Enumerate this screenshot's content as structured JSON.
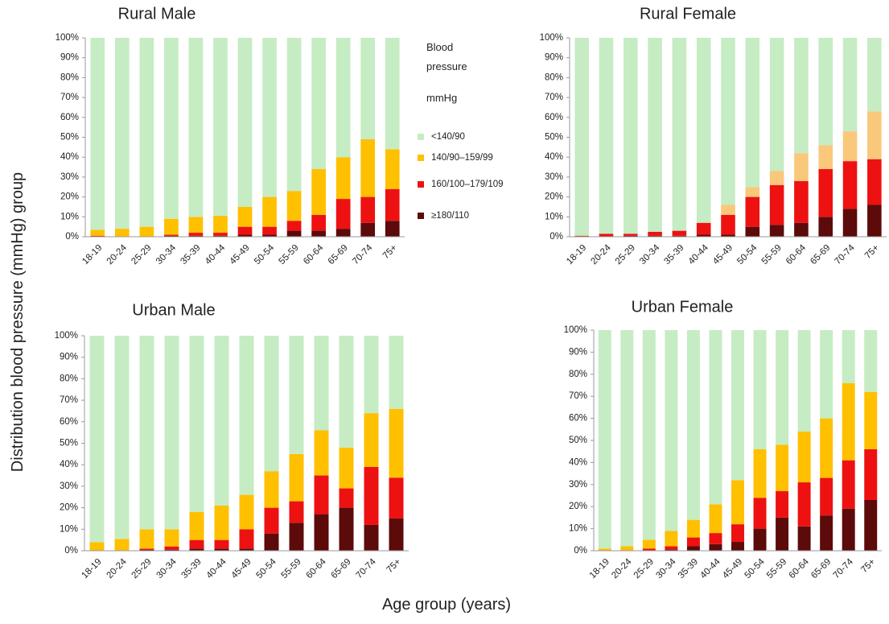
{
  "xlabel": "Age group (years)",
  "ylabel": "Distribution blood pressure (mmHg) group",
  "legend_title": "Blood pressure",
  "legend_unit": "mmHg",
  "chart_data": [
    {
      "type": "bar",
      "stacked": true,
      "title": "Rural Male",
      "categories": [
        "18-19",
        "20-24",
        "25-29",
        "30-34",
        "35-39",
        "40-44",
        "45-49",
        "50-54",
        "55-59",
        "60-64",
        "65-69",
        "70-74",
        "75+"
      ],
      "ylim": [
        0,
        100
      ],
      "yticks": [
        {
          "value": 0,
          "label": "0%"
        },
        {
          "value": 10,
          "label": "10%"
        },
        {
          "value": 20,
          "label": "20%"
        },
        {
          "value": 30,
          "label": "30%"
        },
        {
          "value": 40,
          "label": "40%"
        },
        {
          "value": 50,
          "label": "50%"
        },
        {
          "value": 60,
          "label": "60%"
        },
        {
          "value": 70,
          "label": "70%"
        },
        {
          "value": 80,
          "label": "80%"
        },
        {
          "value": 90,
          "label": "90%"
        },
        {
          "value": 100,
          "label": "100%"
        }
      ],
      "series": [
        {
          "name": "≥180/110",
          "color": "#5c0a0a",
          "values": [
            0,
            0,
            0,
            0.5,
            0.5,
            0.5,
            1,
            1,
            3,
            3,
            4,
            7,
            8
          ]
        },
        {
          "name": "160/100–179/109",
          "color": "#ee1111",
          "values": [
            0.5,
            0,
            0,
            0.5,
            1.5,
            1.5,
            4,
            4,
            5,
            8,
            15,
            13,
            16
          ]
        },
        {
          "name": "140/90–159/99",
          "color": "#ffc000",
          "values": [
            3,
            4,
            5,
            8,
            8,
            8.5,
            10,
            15,
            15,
            23,
            21,
            29,
            20
          ]
        },
        {
          "name": "<140/90",
          "color": "#c6ecc3",
          "values": [
            96.5,
            96,
            95,
            91,
            90,
            89.5,
            85,
            80,
            77,
            66,
            60,
            51,
            56
          ]
        }
      ]
    },
    {
      "type": "bar",
      "stacked": true,
      "title": "Rural Female",
      "categories": [
        "18-19",
        "20-24",
        "25-29",
        "30-34",
        "35-39",
        "40-44",
        "45-49",
        "50-54",
        "55-59",
        "60-64",
        "65-69",
        "70-74",
        "75+"
      ],
      "ylim": [
        0,
        100
      ],
      "yticks": [
        {
          "value": 0,
          "label": "0%"
        },
        {
          "value": 10,
          "label": "10%"
        },
        {
          "value": 20,
          "label": "20%"
        },
        {
          "value": 30,
          "label": "30%"
        },
        {
          "value": 40,
          "label": "40%"
        },
        {
          "value": 50,
          "label": "50%"
        },
        {
          "value": 60,
          "label": "60%"
        },
        {
          "value": 70,
          "label": "70%"
        },
        {
          "value": 80,
          "label": "80%"
        },
        {
          "value": 90,
          "label": "90%"
        },
        {
          "value": 100,
          "label": "100%"
        }
      ],
      "series": [
        {
          "name": "≥180/110",
          "color": "#5c0a0a",
          "values": [
            0,
            0,
            0.5,
            0.5,
            0.5,
            1,
            1,
            5,
            6,
            7,
            10,
            14,
            16
          ]
        },
        {
          "name": "160/100–179/109",
          "color": "#ee1111",
          "values": [
            0.5,
            1.5,
            1,
            2,
            2.5,
            6,
            10,
            15,
            20,
            21,
            24,
            24,
            23
          ]
        },
        {
          "name": "140/90–159/99",
          "color": "#f9c87a",
          "values": [
            0,
            0,
            0,
            0,
            0,
            0,
            5,
            5,
            7,
            14,
            12,
            15,
            24
          ]
        },
        {
          "name": "<140/90",
          "color": "#c6ecc3",
          "values": [
            99.5,
            98.5,
            98.5,
            97.5,
            97,
            93,
            84,
            75,
            67,
            58,
            54,
            47,
            37
          ]
        }
      ]
    },
    {
      "type": "bar",
      "stacked": true,
      "title": "Urban Male",
      "categories": [
        "18-19",
        "20-24",
        "25-29",
        "30-34",
        "35-39",
        "40-44",
        "45-49",
        "50-54",
        "55-59",
        "60-64",
        "65-69",
        "70-74",
        "75+"
      ],
      "ylim": [
        0,
        100
      ],
      "yticks": [
        {
          "value": 0,
          "label": "0%"
        },
        {
          "value": 10,
          "label": "10%"
        },
        {
          "value": 20,
          "label": "20%"
        },
        {
          "value": 30,
          "label": "30%"
        },
        {
          "value": 40,
          "label": "40%"
        },
        {
          "value": 50,
          "label": "50%"
        },
        {
          "value": 60,
          "label": "60%"
        },
        {
          "value": 70,
          "label": "70%"
        },
        {
          "value": 80,
          "label": "80%"
        },
        {
          "value": 90,
          "label": "90%"
        },
        {
          "value": 100,
          "label": "100%"
        }
      ],
      "series": [
        {
          "name": "≥180/110",
          "color": "#5c0a0a",
          "values": [
            0,
            0,
            0.5,
            0.5,
            1,
            1,
            1,
            8,
            13,
            17,
            20,
            12,
            15
          ]
        },
        {
          "name": "160/100–179/109",
          "color": "#ee1111",
          "values": [
            0,
            0,
            0.5,
            1.5,
            4,
            4,
            9,
            12,
            10,
            18,
            9,
            27,
            19
          ]
        },
        {
          "name": "140/90–159/99",
          "color": "#ffc000",
          "values": [
            4,
            5.5,
            9,
            8,
            13,
            16,
            16,
            17,
            22,
            21,
            19,
            25,
            32
          ]
        },
        {
          "name": "<140/90",
          "color": "#c6ecc3",
          "values": [
            96,
            94.5,
            90,
            90,
            82,
            79,
            74,
            63,
            55,
            44,
            52,
            36,
            34
          ]
        }
      ]
    },
    {
      "type": "bar",
      "stacked": true,
      "title": "Urban Female",
      "categories": [
        "18-19",
        "20-24",
        "25-29",
        "30-34",
        "35-39",
        "40-44",
        "45-49",
        "50-54",
        "55-59",
        "60-64",
        "65-69",
        "70-74",
        "75+"
      ],
      "ylim": [
        0,
        100
      ],
      "yticks": [
        {
          "value": 0,
          "label": "0%"
        },
        {
          "value": 10,
          "label": "10%"
        },
        {
          "value": 20,
          "label": "20%"
        },
        {
          "value": 30,
          "label": "30%"
        },
        {
          "value": 40,
          "label": "40%"
        },
        {
          "value": 50,
          "label": "50%"
        },
        {
          "value": 60,
          "label": "60%"
        },
        {
          "value": 70,
          "label": "70%"
        },
        {
          "value": 80,
          "label": "80%"
        },
        {
          "value": 90,
          "label": "90%"
        },
        {
          "value": 100,
          "label": "100%"
        }
      ],
      "series": [
        {
          "name": "≥180/110",
          "color": "#5c0a0a",
          "values": [
            0,
            0,
            0,
            0.5,
            2,
            3,
            4,
            10,
            15,
            11,
            16,
            19,
            23
          ]
        },
        {
          "name": "160/100–179/109",
          "color": "#ee1111",
          "values": [
            0,
            0,
            1,
            1.5,
            4,
            5,
            8,
            14,
            12,
            20,
            17,
            22,
            23
          ]
        },
        {
          "name": "140/90–159/99",
          "color": "#ffc000",
          "values": [
            1,
            2,
            4,
            7,
            8,
            13,
            20,
            22,
            21,
            23,
            27,
            35,
            26
          ]
        },
        {
          "name": "<140/90",
          "color": "#c6ecc3",
          "values": [
            99,
            98,
            95,
            91,
            86,
            79,
            68,
            54,
            52,
            46,
            40,
            24,
            28
          ]
        }
      ]
    }
  ]
}
